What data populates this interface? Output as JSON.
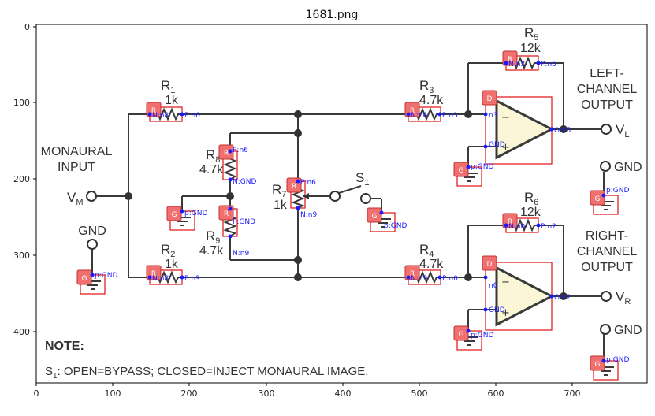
{
  "figure": {
    "title": "1681.png",
    "x_ticks": [
      "0",
      "100",
      "200",
      "300",
      "400",
      "500",
      "600",
      "700"
    ],
    "y_ticks": [
      "0",
      "100",
      "200",
      "300",
      "400"
    ]
  },
  "circuit": {
    "input": {
      "line1": "MONAURAL",
      "line2": "INPUT",
      "vm": "V",
      "vm_sub": "M",
      "gnd": "GND"
    },
    "left_output": {
      "line1": "LEFT-",
      "line2": "CHANNEL",
      "line3": "OUTPUT",
      "vl": "V",
      "vl_sub": "L",
      "gnd": "GND"
    },
    "right_output": {
      "line1": "RIGHT-",
      "line2": "CHANNEL",
      "line3": "OUTPUT",
      "vr": "V",
      "vr_sub": "R",
      "gnd": "GND"
    },
    "resistors": {
      "r1": {
        "name": "R",
        "sub": "1",
        "value": "1k"
      },
      "r2": {
        "name": "R",
        "sub": "2",
        "value": "1k"
      },
      "r3": {
        "name": "R",
        "sub": "3",
        "value": "4.7k"
      },
      "r4": {
        "name": "R",
        "sub": "4",
        "value": "4.7k"
      },
      "r5": {
        "name": "R",
        "sub": "5",
        "value": "12k"
      },
      "r6": {
        "name": "R",
        "sub": "6",
        "value": "12k"
      },
      "r7": {
        "name": "R",
        "sub": "7",
        "value": "1k"
      },
      "r8": {
        "name": "R",
        "sub": "8",
        "value": "4.7k"
      },
      "r9": {
        "name": "R",
        "sub": "9",
        "value": "4.7k"
      }
    },
    "switch": {
      "name": "S",
      "sub": "1"
    },
    "note": {
      "title": "NOTE:",
      "s": "S",
      "sub": "1",
      "text": ": OPEN=BYPASS; CLOSED=INJECT MONAURAL IMAGE."
    }
  },
  "annotations": {
    "tag_r": "R",
    "tag_g": "G",
    "tag_d": "D",
    "r1": {
      "n": "N:n8",
      "p": "P:n6"
    },
    "r2": {
      "n": "N:n8",
      "p": "P:n9"
    },
    "r3": {
      "n": "N:n6",
      "p": "P:n3"
    },
    "r4": {
      "n": "N:n9",
      "p": "P:n0"
    },
    "r5": {
      "n": "N:n3",
      "p": "P:n5"
    },
    "r6": {
      "n": "N:n0",
      "p": "P:n2"
    },
    "r7": {
      "p": "P:n6",
      "n": "N:n9"
    },
    "r8": {
      "p": "P:n6",
      "n": "N:GND"
    },
    "r9": {
      "p": "P:GND",
      "n": "N:n9"
    },
    "op1": {
      "inv": "n3",
      "ninv": "GND",
      "out": "O:n5"
    },
    "op2": {
      "inv": "n0",
      "ninv": "GND",
      "out": "O:n2"
    },
    "gnd_label": "p:GND"
  }
}
